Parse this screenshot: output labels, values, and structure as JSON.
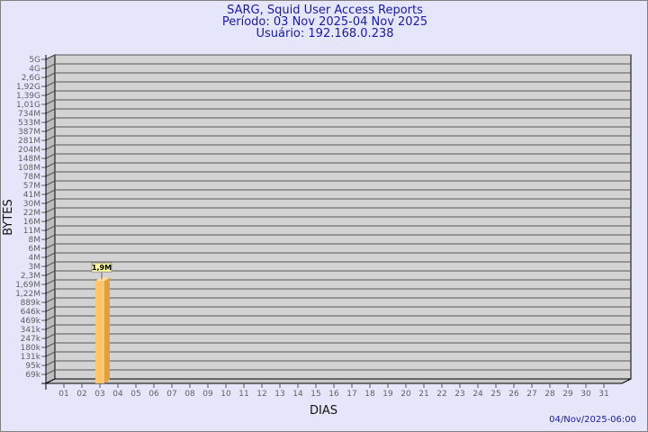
{
  "header": {
    "title": "SARG, Squid User Access Reports",
    "period": "Período: 03 Nov 2025-04 Nov 2025",
    "user": "Usuário: 192.168.0.238"
  },
  "footer": {
    "timestamp": "04/Nov/2025-06:00"
  },
  "colors": {
    "background": "#e6e6fa",
    "plot": "#d3d3d3",
    "bar": "#ffc66e",
    "bar_side": "#e0a040",
    "text": "#1a1aa0"
  },
  "chart_data": {
    "type": "bar",
    "title": "SARG, Squid User Access Reports",
    "xlabel": "DIAS",
    "ylabel": "BYTES",
    "y_scale": "log",
    "grid": true,
    "y_ticks": [
      "5G",
      "4G",
      "2,6G",
      "1,92G",
      "1,39G",
      "1,01G",
      "734M",
      "533M",
      "387M",
      "281M",
      "204M",
      "148M",
      "108M",
      "78M",
      "57M",
      "41M",
      "30M",
      "22M",
      "16M",
      "11M",
      "8M",
      "6M",
      "4M",
      "3M",
      "2,3M",
      "1,69M",
      "1,22M",
      "889k",
      "646k",
      "469k",
      "341k",
      "247k",
      "180k",
      "131k",
      "95k",
      "69k"
    ],
    "y_tick_values": [
      5000000000.0,
      4000000000.0,
      2600000000.0,
      1920000000.0,
      1390000000.0,
      1010000000.0,
      734000000.0,
      533000000.0,
      387000000.0,
      281000000.0,
      204000000.0,
      148000000.0,
      108000000.0,
      78000000.0,
      57000000.0,
      41000000.0,
      30000000.0,
      22000000.0,
      16000000.0,
      11000000.0,
      8000000.0,
      6000000.0,
      4000000.0,
      3000000.0,
      2300000.0,
      1690000.0,
      1220000.0,
      889000.0,
      646000.0,
      469000.0,
      341000.0,
      247000.0,
      180000.0,
      131000.0,
      95000.0,
      69000.0
    ],
    "categories": [
      "01",
      "02",
      "03",
      "04",
      "05",
      "06",
      "07",
      "08",
      "09",
      "10",
      "11",
      "12",
      "13",
      "14",
      "15",
      "16",
      "17",
      "18",
      "19",
      "20",
      "21",
      "22",
      "23",
      "24",
      "25",
      "26",
      "27",
      "28",
      "29",
      "30",
      "31"
    ],
    "bars": [
      {
        "category": "03",
        "value": 1900000,
        "label": "1,9M"
      }
    ]
  }
}
